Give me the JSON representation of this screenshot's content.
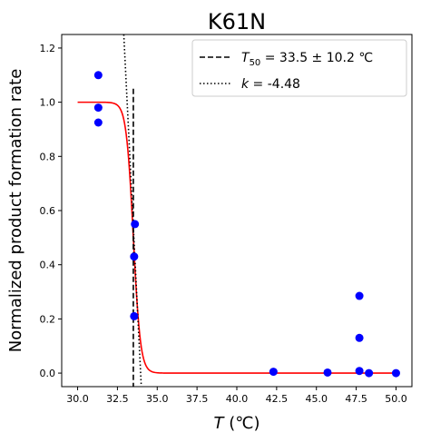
{
  "chart_data": {
    "type": "scatter",
    "title": "K61N",
    "xlabel": {
      "symbol": "T",
      "unit": "(℃)"
    },
    "ylabel": "Normalized product formation rate",
    "xlim": [
      29.0,
      51.0
    ],
    "ylim": [
      -0.05,
      1.25
    ],
    "xticks": [
      30.0,
      32.5,
      35.0,
      37.5,
      40.0,
      42.5,
      45.0,
      47.5,
      50.0
    ],
    "xtick_labels": [
      "30.0",
      "32.5",
      "35.0",
      "37.5",
      "40.0",
      "42.5",
      "45.0",
      "47.5",
      "50.0"
    ],
    "yticks": [
      0.0,
      0.2,
      0.4,
      0.6,
      0.8,
      1.0,
      1.2
    ],
    "ytick_labels": [
      "0.0",
      "0.2",
      "0.4",
      "0.6",
      "0.8",
      "1.0",
      "1.2"
    ],
    "grid": false,
    "legend_position": "upper-right",
    "colors": {
      "points": "#0000ff",
      "fit": "#ff0000",
      "ref_lines": "#000000"
    },
    "points": [
      {
        "x": 31.3,
        "y": 1.1
      },
      {
        "x": 31.3,
        "y": 0.98
      },
      {
        "x": 31.3,
        "y": 0.925
      },
      {
        "x": 33.6,
        "y": 0.55
      },
      {
        "x": 33.55,
        "y": 0.43
      },
      {
        "x": 33.55,
        "y": 0.21
      },
      {
        "x": 42.3,
        "y": 0.005
      },
      {
        "x": 45.7,
        "y": 0.002
      },
      {
        "x": 47.7,
        "y": 0.285
      },
      {
        "x": 47.7,
        "y": 0.13
      },
      {
        "x": 47.7,
        "y": 0.008
      },
      {
        "x": 48.3,
        "y": 0.0
      },
      {
        "x": 50.0,
        "y": 0.0
      }
    ],
    "fit_curve": {
      "type": "sigmoid",
      "T50": 33.5,
      "k": -4.48,
      "x_range": [
        30.0,
        50.0
      ]
    },
    "t50_line": {
      "x": 33.5,
      "y_range": [
        -0.05,
        1.05
      ],
      "style": "dashed"
    },
    "slope_line": {
      "x_top": 32.9,
      "x_bottom": 34.0,
      "style": "dotted"
    },
    "legend": [
      {
        "style": "dashed",
        "prefix": "T",
        "sub": "50",
        "text": " = 33.5 ± 10.2 ℃"
      },
      {
        "style": "dotted",
        "prefix": "k",
        "text": " = -4.48"
      }
    ]
  }
}
